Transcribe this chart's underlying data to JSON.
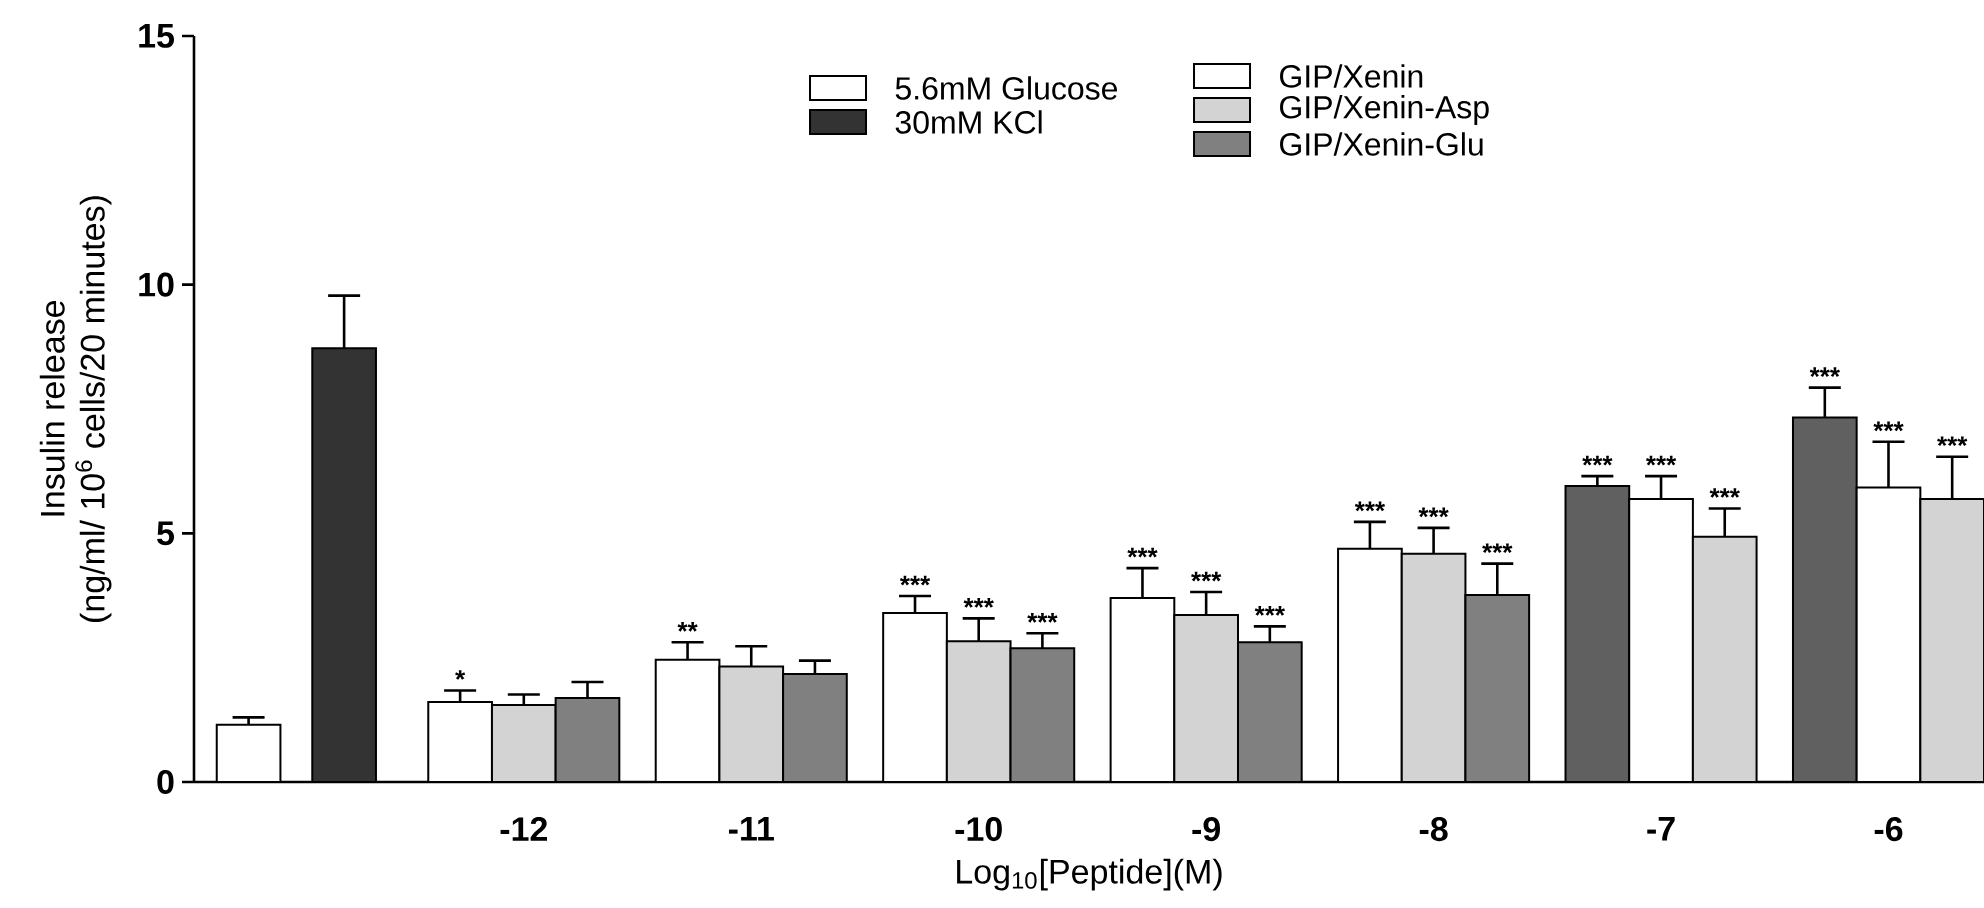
{
  "chart_data": {
    "type": "bar",
    "xlabel": "Log$_{10}$[Peptide](M)",
    "ylabel": "Insulin release\n(ng/ml/ 10$^{6}$ cells/20 minutes)",
    "categories": [
      null,
      "-12",
      "-11",
      "-10",
      "-9",
      "-8",
      "-7",
      "-6"
    ],
    "series": [
      {
        "name": "5.6mM Glucose",
        "color": "#ffffff",
        "values": [
          1.15,
          null,
          null,
          null,
          null,
          null,
          null,
          null
        ],
        "errors": [
          0.15,
          null,
          null,
          null,
          null,
          null,
          null,
          null
        ]
      },
      {
        "name": "30mM KCl",
        "color": "#333333",
        "values": [
          8.72,
          null,
          null,
          null,
          null,
          null,
          null,
          null
        ],
        "errors": [
          1.06,
          null,
          null,
          null,
          null,
          null,
          null,
          null
        ]
      },
      {
        "name": "GIP/Xenin",
        "color": "#ffffff",
        "colors": [
          "#ffffff",
          "#ffffff",
          "#ffffff",
          "#ffffff",
          "#ffffff",
          "#ffffff",
          "#606060",
          "#606060"
        ],
        "values": [
          null,
          1.61,
          2.46,
          3.4,
          3.7,
          4.69,
          5.95,
          7.33
        ],
        "errors": [
          null,
          0.23,
          0.35,
          0.34,
          0.6,
          0.54,
          0.2,
          0.6
        ],
        "value_labels": [
          null,
          "*",
          "**",
          "***",
          "***",
          "***",
          "***",
          "***"
        ]
      },
      {
        "name": "GIP/Xenin-Asp",
        "color": "#d3d3d3",
        "colors": [
          "#d3d3d3",
          "#d3d3d3",
          "#d3d3d3",
          "#d3d3d3",
          "#d3d3d3",
          "#d3d3d3",
          "#ffffff",
          "#ffffff"
        ],
        "values": [
          null,
          1.55,
          2.32,
          2.83,
          3.36,
          4.59,
          5.69,
          5.92
        ],
        "errors": [
          null,
          0.21,
          0.41,
          0.46,
          0.46,
          0.52,
          0.46,
          0.92
        ],
        "value_labels": [
          null,
          null,
          null,
          "***",
          "***",
          "***",
          "***",
          "***"
        ]
      },
      {
        "name": "GIP/Xenin-Glu",
        "color": "#808080",
        "colors": [
          "#808080",
          "#808080",
          "#808080",
          "#808080",
          "#808080",
          "#808080",
          "#d3d3d3",
          "#d3d3d3"
        ],
        "values": [
          null,
          1.69,
          2.17,
          2.69,
          2.81,
          3.76,
          4.93,
          5.69
        ],
        "errors": [
          null,
          0.32,
          0.27,
          0.3,
          0.32,
          0.63,
          0.57,
          0.85
        ],
        "value_labels": [
          null,
          null,
          null,
          "***",
          "***",
          "***",
          "***",
          "***"
        ]
      }
    ],
    "ylim": [
      0,
      15
    ],
    "yticks": [
      0,
      5,
      10,
      15
    ],
    "legend": "top"
  }
}
